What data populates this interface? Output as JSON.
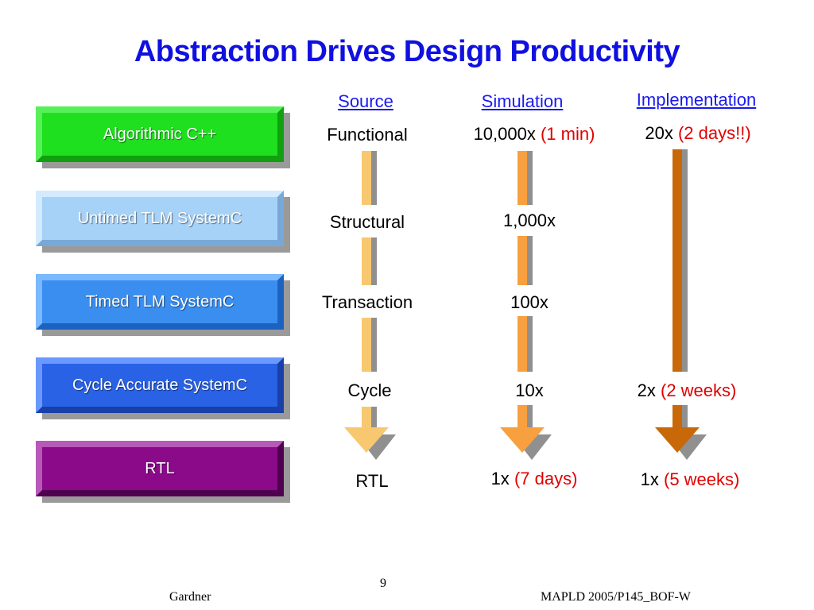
{
  "title": "Abstraction Drives Design Productivity",
  "columns": {
    "source": "Source",
    "simulation": "Simulation",
    "implementation": "Implementation"
  },
  "boxes": [
    {
      "label": "Algorithmic C++",
      "color": "#1ee01e"
    },
    {
      "label": "Untimed TLM SystemC",
      "color": "#a6d2f8"
    },
    {
      "label": "Timed TLM SystemC",
      "color": "#3a8ef0"
    },
    {
      "label": "Cycle Accurate SystemC",
      "color": "#2a62e6"
    },
    {
      "label": "RTL",
      "color": "#8a0a8a"
    }
  ],
  "source_levels": [
    "Functional",
    "Structural",
    "Transaction",
    "Cycle",
    "RTL"
  ],
  "simulation_levels": [
    {
      "value": "10,000x",
      "note": "(1 min)"
    },
    {
      "value": "1,000x",
      "note": ""
    },
    {
      "value": "100x",
      "note": ""
    },
    {
      "value": "10x",
      "note": ""
    },
    {
      "value": "1x",
      "note": "(7 days)"
    }
  ],
  "implementation_levels": [
    {
      "value": "20x",
      "note": "(2 days!!)"
    },
    {
      "value": "2x",
      "note": "(2 weeks)"
    },
    {
      "value": "1x",
      "note": "(5 weeks)"
    }
  ],
  "arrow_colors": {
    "source": "#f8c870",
    "simulation": "#f8a040",
    "implementation": "#c86808"
  },
  "page_number": "9",
  "footer": {
    "left": "Gardner",
    "right": "MAPLD 2005/P145_BOF-W"
  }
}
